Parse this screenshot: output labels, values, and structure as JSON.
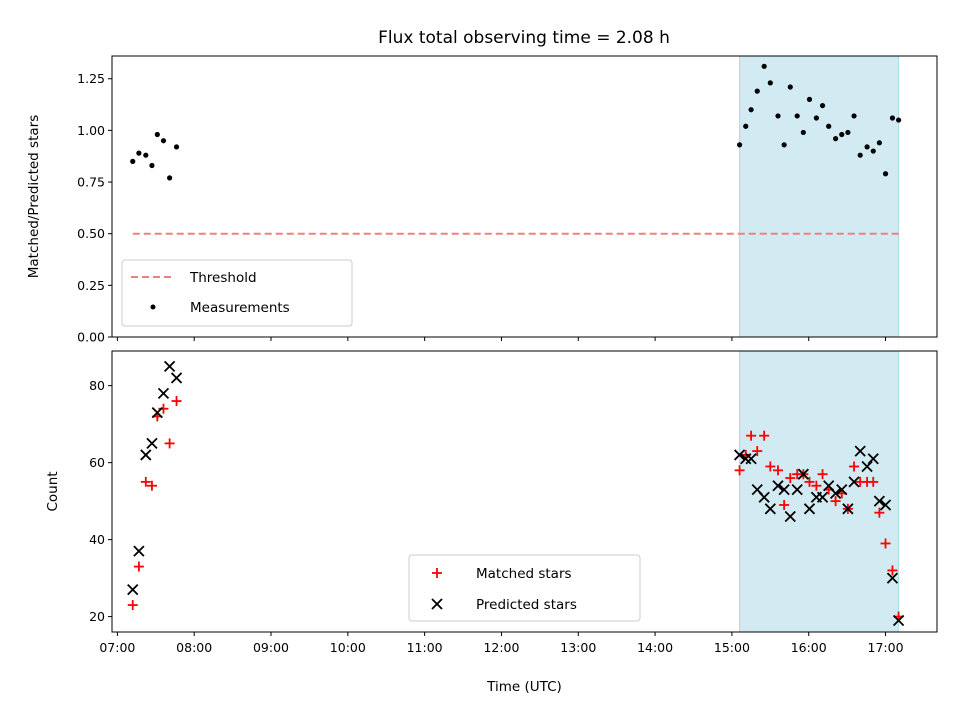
{
  "chart_data": {
    "title": "Flux total observing time = 2.08 h",
    "xlabel": "Time (UTC)",
    "x_ticks": [
      "07:00",
      "08:00",
      "09:00",
      "10:00",
      "11:00",
      "12:00",
      "13:00",
      "14:00",
      "15:00",
      "16:00",
      "17:00"
    ],
    "x_range_hours": [
      6.93,
      17.67
    ],
    "shaded_interval_hours": [
      15.1,
      17.17
    ],
    "shade_color": "#add8e6",
    "panels": [
      {
        "type": "scatter",
        "ylabel": "Matched/Predicted stars",
        "ylim": [
          0,
          1.36
        ],
        "y_ticks": [
          "0.00",
          "0.25",
          "0.50",
          "0.75",
          "1.00",
          "1.25"
        ],
        "legend_position": "lower-left",
        "threshold": {
          "name": "Threshold",
          "value": 0.5,
          "x_start": 7.2,
          "x_end": 17.2,
          "color": "#f08080"
        },
        "series": [
          {
            "name": "Measurements",
            "color": "#000000",
            "marker": "dot",
            "x": [
              7.2,
              7.28,
              7.37,
              7.45,
              7.52,
              7.6,
              7.68,
              7.77,
              15.1,
              15.18,
              15.25,
              15.33,
              15.42,
              15.5,
              15.6,
              15.68,
              15.76,
              15.85,
              15.93,
              16.01,
              16.1,
              16.18,
              16.26,
              16.35,
              16.43,
              16.51,
              16.59,
              16.67,
              16.76,
              16.84,
              16.92,
              17.0,
              17.09,
              17.17
            ],
            "y": [
              0.85,
              0.89,
              0.88,
              0.83,
              0.98,
              0.95,
              0.77,
              0.92,
              0.93,
              1.02,
              1.1,
              1.19,
              1.31,
              1.23,
              1.07,
              0.93,
              1.21,
              1.07,
              0.99,
              1.15,
              1.06,
              1.12,
              1.02,
              0.96,
              0.98,
              0.99,
              1.07,
              0.88,
              0.92,
              0.9,
              0.94,
              0.79,
              1.06,
              1.05
            ]
          }
        ]
      },
      {
        "type": "scatter",
        "ylabel": "Count",
        "ylim": [
          16,
          89
        ],
        "y_ticks": [
          "20",
          "40",
          "60",
          "80"
        ],
        "legend_position": "lower-center",
        "series": [
          {
            "name": "Matched stars",
            "color": "#ff0000",
            "marker": "plus",
            "x": [
              7.2,
              7.28,
              7.37,
              7.45,
              7.52,
              7.6,
              7.68,
              7.77,
              15.1,
              15.18,
              15.25,
              15.33,
              15.42,
              15.5,
              15.6,
              15.68,
              15.76,
              15.85,
              15.93,
              16.01,
              16.1,
              16.18,
              16.26,
              16.35,
              16.43,
              16.51,
              16.59,
              16.67,
              16.76,
              16.84,
              16.92,
              17.0,
              17.09,
              17.17
            ],
            "y": [
              23,
              33,
              55,
              54,
              72,
              74,
              65,
              76,
              58,
              62,
              67,
              63,
              67,
              59,
              58,
              49,
              56,
              57,
              57,
              55,
              54,
              57,
              53,
              50,
              52,
              48,
              59,
              55,
              55,
              55,
              47,
              39,
              32,
              20
            ]
          },
          {
            "name": "Predicted stars",
            "color": "#000000",
            "marker": "x",
            "x": [
              7.2,
              7.28,
              7.37,
              7.45,
              7.52,
              7.6,
              7.68,
              7.77,
              15.1,
              15.18,
              15.25,
              15.33,
              15.42,
              15.5,
              15.6,
              15.68,
              15.76,
              15.85,
              15.93,
              16.01,
              16.1,
              16.18,
              16.26,
              16.35,
              16.43,
              16.51,
              16.59,
              16.67,
              16.76,
              16.84,
              16.92,
              17.0,
              17.09,
              17.17
            ],
            "y": [
              27,
              37,
              62,
              65,
              73,
              78,
              85,
              82,
              62,
              61,
              61,
              53,
              51,
              48,
              54,
              53,
              46,
              53,
              57,
              48,
              51,
              51,
              54,
              52,
              53,
              48,
              55,
              63,
              59,
              61,
              50,
              49,
              30,
              19
            ]
          }
        ]
      }
    ]
  }
}
